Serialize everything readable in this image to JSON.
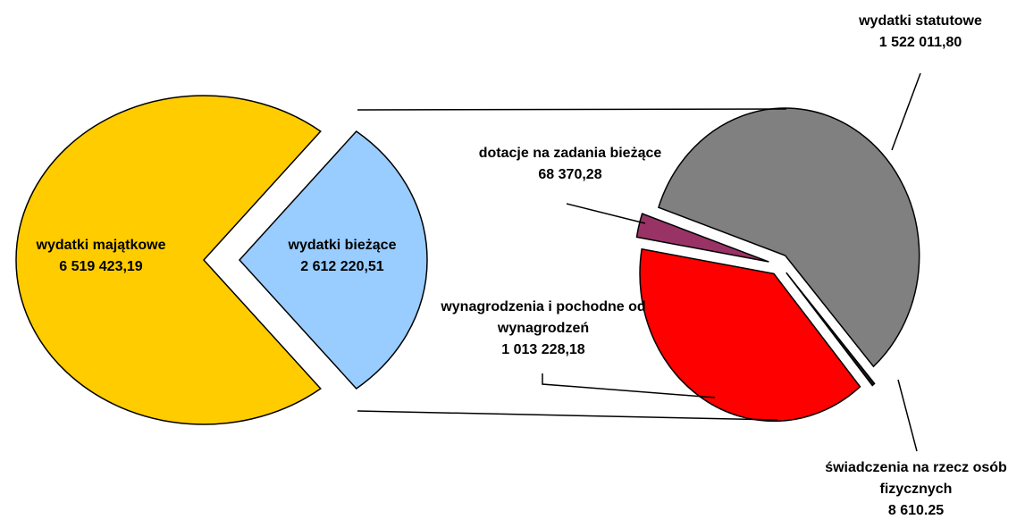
{
  "chart_data": [
    {
      "type": "pie",
      "categories": [
        "wydatki majątkowe",
        "wydatki bieżące"
      ],
      "values": [
        6519423.19,
        2612220.51
      ],
      "value_labels": [
        "6 519 423,19",
        "2 612 220,51"
      ],
      "colors": [
        "#ffcc00",
        "#99ccff"
      ]
    },
    {
      "type": "pie",
      "categories": [
        "świadczenia na rzecz osób fizycznych",
        "wydatki statutowe",
        "dotacje na zadania bieżące",
        "wynagrodzenia i pochodne od wynagrodzeń"
      ],
      "values": [
        8610.25,
        1522011.8,
        68370.28,
        1013228.18
      ],
      "value_labels": [
        "8 610.25",
        "1 522 011,80",
        "68 370,28",
        "1 013 228,18"
      ],
      "colors": [
        "#1a1a1a",
        "#808080",
        "#993366",
        "#ff0000"
      ]
    }
  ]
}
